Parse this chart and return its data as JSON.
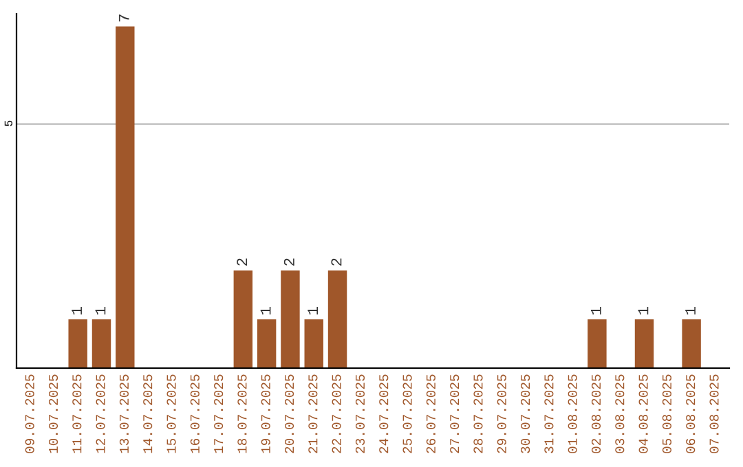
{
  "chart_data": {
    "type": "bar",
    "categories": [
      "09.07.2025",
      "10.07.2025",
      "11.07.2025",
      "12.07.2025",
      "13.07.2025",
      "14.07.2025",
      "15.07.2025",
      "16.07.2025",
      "17.07.2025",
      "18.07.2025",
      "19.07.2025",
      "20.07.2025",
      "21.07.2025",
      "22.07.2025",
      "23.07.2025",
      "24.07.2025",
      "25.07.2025",
      "26.07.2025",
      "27.07.2025",
      "28.07.2025",
      "29.07.2025",
      "30.07.2025",
      "31.07.2025",
      "01.08.2025",
      "02.08.2025",
      "03.08.2025",
      "04.08.2025",
      "05.08.2025",
      "06.08.2025",
      "07.08.2025"
    ],
    "values": [
      0,
      0,
      1,
      1,
      7,
      0,
      0,
      0,
      0,
      2,
      1,
      2,
      1,
      2,
      0,
      0,
      0,
      0,
      0,
      0,
      0,
      0,
      0,
      0,
      1,
      0,
      1,
      0,
      1,
      0
    ],
    "value_labels": [
      null,
      null,
      "1",
      "1",
      "7",
      null,
      null,
      null,
      null,
      "2",
      "1",
      "2",
      "1",
      "2",
      null,
      null,
      null,
      null,
      null,
      null,
      null,
      null,
      null,
      null,
      "1",
      null,
      "1",
      null,
      "1",
      null
    ],
    "color": "#a0572a",
    "ylim": [
      0,
      7.26
    ],
    "yticks": [
      5
    ],
    "grid": "y"
  }
}
